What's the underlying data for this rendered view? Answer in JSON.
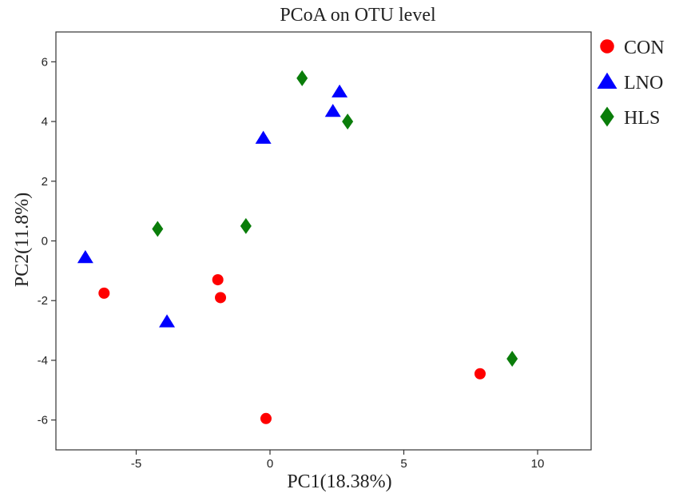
{
  "chart_data": {
    "type": "scatter",
    "title": "PCoA on OTU level",
    "xlabel": "PC1(18.38%)",
    "ylabel": "PC2(11.8%)",
    "xlim": [
      -8,
      12
    ],
    "ylim": [
      -7,
      7
    ],
    "xticks": [
      -5,
      0,
      5,
      10
    ],
    "yticks": [
      6,
      4,
      2,
      0,
      -2,
      -4,
      -6
    ],
    "xtick_labels": [
      "-5",
      "0",
      "5",
      "10"
    ],
    "ytick_labels": [
      "6",
      "4",
      "2",
      "0",
      "-2",
      "-4",
      "-6"
    ],
    "grid": false,
    "legend_position": "outside right, top",
    "series": [
      {
        "name": "CON",
        "marker": "circle",
        "color": "#ff0000",
        "points": [
          {
            "x": -6.2,
            "y": -1.75
          },
          {
            "x": -1.95,
            "y": -1.3
          },
          {
            "x": -1.85,
            "y": -1.9
          },
          {
            "x": -0.15,
            "y": -5.95
          },
          {
            "x": 7.85,
            "y": -4.45
          }
        ]
      },
      {
        "name": "LNO",
        "marker": "triangle",
        "color": "#0000ff",
        "points": [
          {
            "x": -6.9,
            "y": -0.55
          },
          {
            "x": -3.85,
            "y": -2.7
          },
          {
            "x": -0.25,
            "y": 3.45
          },
          {
            "x": 2.35,
            "y": 4.35
          },
          {
            "x": 2.6,
            "y": 5.0
          }
        ]
      },
      {
        "name": "HLS",
        "marker": "diamond",
        "color": "#0a7d0a",
        "points": [
          {
            "x": -4.2,
            "y": 0.4
          },
          {
            "x": -0.9,
            "y": 0.5
          },
          {
            "x": 1.2,
            "y": 5.45
          },
          {
            "x": 2.9,
            "y": 4.0
          },
          {
            "x": 9.05,
            "y": -3.95
          }
        ]
      }
    ]
  }
}
